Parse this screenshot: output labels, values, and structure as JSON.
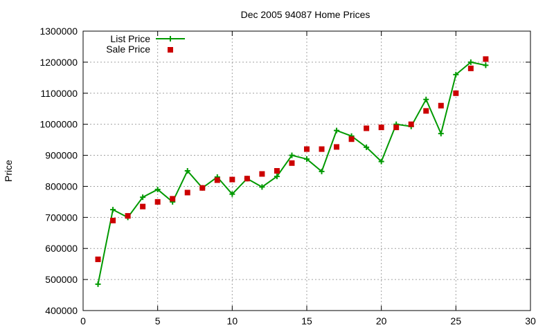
{
  "chart_data": {
    "type": "line",
    "title": "Dec 2005 94087 Home Prices",
    "xlabel": "",
    "ylabel": "Price",
    "xlim": [
      0,
      30
    ],
    "ylim": [
      400000,
      1300000
    ],
    "x_ticks": [
      0,
      5,
      10,
      15,
      20,
      25,
      30
    ],
    "y_ticks": [
      400000,
      500000,
      600000,
      700000,
      800000,
      900000,
      1000000,
      1100000,
      1200000,
      1300000
    ],
    "grid": true,
    "legend_position": "top-left",
    "series": [
      {
        "name": "List Price",
        "style": "line-with-plus-markers",
        "color": "#009900",
        "x": [
          1,
          2,
          3,
          4,
          5,
          6,
          7,
          8,
          9,
          10,
          11,
          12,
          13,
          14,
          15,
          16,
          17,
          18,
          19,
          20,
          21,
          22,
          23,
          24,
          25,
          26,
          27
        ],
        "values": [
          485000,
          725000,
          700000,
          765000,
          790000,
          750000,
          850000,
          795000,
          830000,
          775000,
          825000,
          798000,
          832000,
          900000,
          888000,
          848000,
          980000,
          962000,
          926000,
          880000,
          1000000,
          993000,
          1080000,
          970000,
          1160000,
          1200000,
          1190000
        ]
      },
      {
        "name": "Sale Price",
        "style": "square-markers",
        "color": "#cc0000",
        "x": [
          1,
          2,
          3,
          4,
          5,
          6,
          7,
          8,
          9,
          10,
          11,
          12,
          13,
          14,
          15,
          16,
          17,
          18,
          19,
          20,
          21,
          22,
          23,
          24,
          25,
          26,
          27
        ],
        "values": [
          565000,
          690000,
          705000,
          735000,
          750000,
          760000,
          780000,
          795000,
          820000,
          822000,
          825000,
          840000,
          850000,
          875000,
          920000,
          920000,
          927000,
          952000,
          987000,
          990000,
          990000,
          1000000,
          1043000,
          1060000,
          1100000,
          1180000,
          1210000
        ]
      }
    ]
  }
}
